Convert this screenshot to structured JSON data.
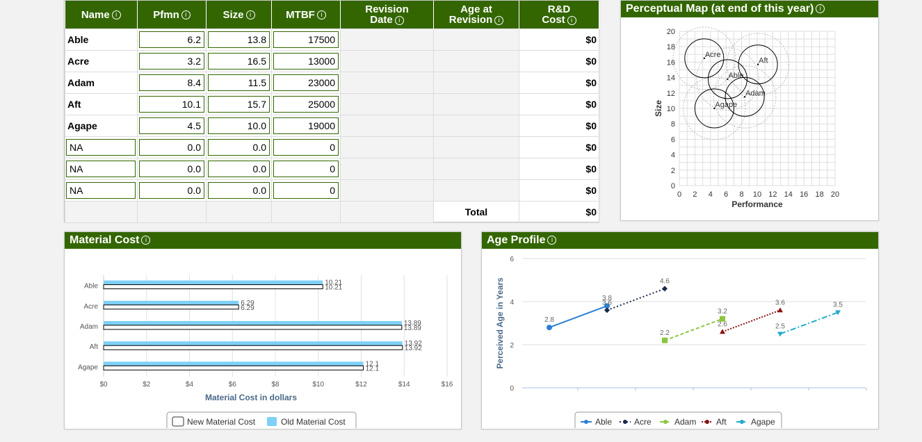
{
  "table": {
    "headers": {
      "name": "Name",
      "pfmn": "Pfmn",
      "size": "Size",
      "mtbf": "MTBF",
      "revision_l1": "Revision",
      "revision_l2": "Date",
      "age_l1": "Age at",
      "age_l2": "Revision",
      "rd_l1": "R&D",
      "rd_l2": "Cost",
      "info": "i"
    },
    "rows": [
      {
        "name": "Able",
        "pfmn": "6.2",
        "size": "13.8",
        "mtbf": "17500",
        "rd": "$0"
      },
      {
        "name": "Acre",
        "pfmn": "3.2",
        "size": "16.5",
        "mtbf": "13000",
        "rd": "$0"
      },
      {
        "name": "Adam",
        "pfmn": "8.4",
        "size": "11.5",
        "mtbf": "23000",
        "rd": "$0"
      },
      {
        "name": "Aft",
        "pfmn": "10.1",
        "size": "15.7",
        "mtbf": "25000",
        "rd": "$0"
      },
      {
        "name": "Agape",
        "pfmn": "4.5",
        "size": "10.0",
        "mtbf": "19000",
        "rd": "$0"
      },
      {
        "name": "NA",
        "pfmn": "0.0",
        "size": "0.0",
        "mtbf": "0",
        "rd": "$0"
      },
      {
        "name": "NA",
        "pfmn": "0.0",
        "size": "0.0",
        "mtbf": "0",
        "rd": "$0"
      },
      {
        "name": "NA",
        "pfmn": "0.0",
        "size": "0.0",
        "mtbf": "0",
        "rd": "$0"
      }
    ],
    "total_label": "Total",
    "total_value": "$0"
  },
  "perceptual": {
    "title": "Perceptual Map (at end of this year)",
    "xlabel": "Performance",
    "ylabel": "Size",
    "ticks": [
      "0",
      "2",
      "4",
      "6",
      "8",
      "10",
      "12",
      "14",
      "16",
      "18",
      "20"
    ]
  },
  "material": {
    "title": "Material Cost",
    "xlabel": "Material Cost in dollars",
    "legend_new": "New Material Cost",
    "legend_old": "Old Material Cost",
    "colors": {
      "old": "#7fd0f7",
      "new": "#ffffff"
    }
  },
  "age": {
    "title": "Age Profile",
    "ylabel": "Perceived Age in Years",
    "colors": {
      "Able": "#2a7fd4",
      "Acre": "#1a2a4a",
      "Adam": "#8cc63f",
      "Aft": "#8b1010",
      "Agape": "#22aacc"
    }
  },
  "chart_data": [
    {
      "type": "scatter",
      "title": "Perceptual Map (at end of this year)",
      "xlabel": "Performance",
      "ylabel": "Size",
      "xlim": [
        0,
        20
      ],
      "ylim": [
        0,
        20
      ],
      "points": [
        {
          "label": "Able",
          "x": 6.2,
          "y": 13.8
        },
        {
          "label": "Acre",
          "x": 3.2,
          "y": 16.5
        },
        {
          "label": "Adam",
          "x": 8.4,
          "y": 11.5
        },
        {
          "label": "Aft",
          "x": 10.1,
          "y": 15.7
        },
        {
          "label": "Agape",
          "x": 4.5,
          "y": 10.0
        }
      ]
    },
    {
      "type": "bar",
      "title": "Material Cost",
      "xlabel": "Material Cost in dollars",
      "categories": [
        "Able",
        "Acre",
        "Adam",
        "Aft",
        "Agape"
      ],
      "series": [
        {
          "name": "New Material Cost",
          "values": [
            10.21,
            6.29,
            13.89,
            13.92,
            12.1
          ]
        },
        {
          "name": "Old Material Cost",
          "values": [
            10.21,
            6.29,
            13.89,
            13.92,
            12.1
          ]
        }
      ],
      "value_labels": [
        "10.21",
        "6.29",
        "13.89",
        "13.92",
        "12.1"
      ],
      "xlim": [
        0,
        16
      ],
      "xticks": [
        "$0",
        "$2",
        "$4",
        "$6",
        "$8",
        "$10",
        "$12",
        "$14",
        "$16"
      ]
    },
    {
      "type": "line",
      "title": "Age Profile",
      "ylabel": "Perceived Age in Years",
      "ylim": [
        0,
        6
      ],
      "yticks": [
        "0",
        "2",
        "4",
        "6"
      ],
      "series": [
        {
          "name": "Able",
          "points": [
            {
              "x": 1,
              "y": 2.8,
              "label": "2.8"
            },
            {
              "x": 2,
              "y": 3.8,
              "label": "3.8"
            }
          ]
        },
        {
          "name": "Acre",
          "points": [
            {
              "x": 2,
              "y": 3.6,
              "label": "3.6"
            },
            {
              "x": 3,
              "y": 4.6,
              "label": "4.6"
            }
          ]
        },
        {
          "name": "Adam",
          "points": [
            {
              "x": 3,
              "y": 2.2,
              "label": "2.2"
            },
            {
              "x": 4,
              "y": 3.2,
              "label": "3.2"
            }
          ]
        },
        {
          "name": "Aft",
          "points": [
            {
              "x": 4,
              "y": 2.6,
              "label": "2.6"
            },
            {
              "x": 5,
              "y": 3.6,
              "label": "3.6"
            }
          ]
        },
        {
          "name": "Agape",
          "points": [
            {
              "x": 5,
              "y": 2.5,
              "label": "2.5"
            },
            {
              "x": 6,
              "y": 3.5,
              "label": "3.5"
            }
          ]
        }
      ]
    }
  ]
}
